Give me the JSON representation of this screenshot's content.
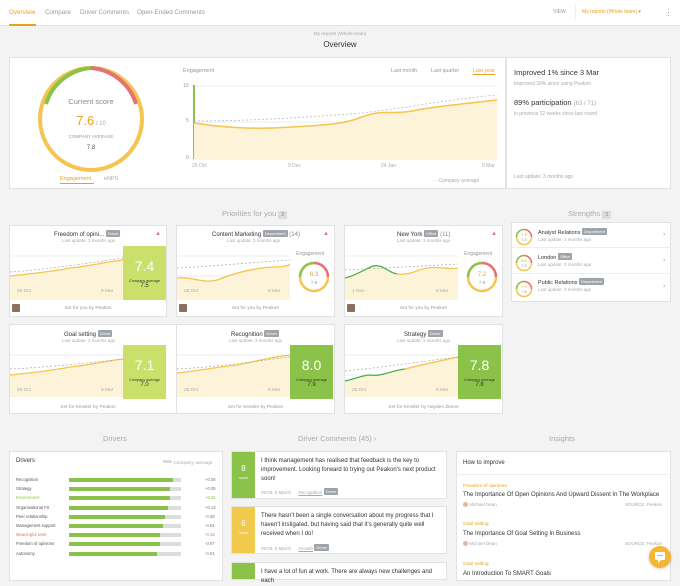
{
  "tabs": [
    "Overview",
    "Compare",
    "Driver Comments",
    "Open-Ended Comments"
  ],
  "view_label": "VIEW",
  "team_select": "My reports (Whole team)",
  "more_icon": "⋮",
  "subtitle": "My reports (Whole team)",
  "title": "Overview",
  "score": {
    "label": "Current score",
    "value": "7.6",
    "of": "/ 10",
    "avg_label": "COMPANY AVERAGE",
    "avg": "7.8",
    "tab_engagement": "Engagement",
    "tab_enps": "eNPS"
  },
  "engagement_chart": {
    "label": "Engagement",
    "ranges": [
      "Last month",
      "Last quarter",
      "Last year"
    ],
    "y_ticks": [
      "10",
      "5",
      "0"
    ],
    "x_ticks": [
      "25 Oct",
      "9 Dec",
      "24 Jan",
      "9 Mar"
    ],
    "legend": "Company average"
  },
  "summary": {
    "improved": "Improved 1% since 3 Mar",
    "improved_sub": "Improved 39% since using Peakon",
    "participation": "89% participation",
    "participation_count": "(63 / 71)",
    "participation_sub": "in previous 12 weeks since last round",
    "last_update": "Last update: 3 months ago"
  },
  "priorities": {
    "heading": "Priorities for you",
    "count": "3"
  },
  "strengths": {
    "heading": "Strengths",
    "count": "3",
    "items": [
      {
        "name": "Analyst Relations",
        "badge": "Department",
        "update": "Last update: 3 months ago",
        "score": "7.9",
        "avg": "7.8"
      },
      {
        "name": "London",
        "badge": "Office",
        "update": "Last update: 3 months ago",
        "score": "8.0",
        "avg": "7.8"
      },
      {
        "name": "Public Relations",
        "badge": "Department",
        "update": "Last update: 3 months ago",
        "score": "7.9",
        "avg": "7.8"
      }
    ]
  },
  "priority_cards": [
    {
      "title": "Freedom of opini...",
      "badge": "Driver",
      "update": "Last update: 3 months ago",
      "score": "7.4",
      "avg_label": "Company average",
      "avg": "7.5",
      "x1": "25 Oct",
      "x2": "9 Mar",
      "footer": "Set for you by Peakon",
      "warn": "▲"
    },
    {
      "title": "Content Marketing",
      "badge": "Department",
      "extra": "(14)",
      "update": "Last update: 3 months ago",
      "score": "6.3",
      "avg": "7.8",
      "ring_label": "Engagement",
      "x1": "25 Oct",
      "x2": "9 Mar",
      "footer": "Set for you by Peakon",
      "warn": "▲"
    },
    {
      "title": "New York",
      "badge": "Office",
      "extra": "(11)",
      "update": "Last update: 3 months ago",
      "score": "7.2",
      "avg": "7.8",
      "ring_label": "Engagement",
      "x1": "1 Nov",
      "x2": "9 Mar",
      "footer": "Set for you by Peakon",
      "warn": "▲"
    }
  ],
  "goal_cards": [
    {
      "title": "Goal setting",
      "badge": "Driver",
      "update": "Last update: 3 months ago",
      "score": "7.1",
      "avg_label": "Company average",
      "avg": "7.0",
      "x1": "25 Oct",
      "x2": "9 Mar",
      "footer": "Set for Kinstler by Peakon"
    },
    {
      "title": "Recognition",
      "badge": "Driver",
      "update": "Last update: 3 months ago",
      "score": "8.0",
      "avg_label": "Company average",
      "avg": "7.9",
      "x1": "25 Oct",
      "x2": "9 Mar",
      "footer": "Set for Kinstler by Peakon"
    },
    {
      "title": "Strategy",
      "badge": "Driver",
      "update": "Last update: 3 months ago",
      "score": "7.8",
      "avg_label": "Company average",
      "avg": "7.8",
      "x1": "25 Oct",
      "x2": "9 Mar",
      "footer": "Set for Kinstler by Hayden Zieme"
    }
  ],
  "drivers": {
    "heading": "Drivers",
    "card_title": "Drivers",
    "legend": "Company average",
    "rows": [
      {
        "name": "Recognition",
        "val": "+0.05",
        "pct": 0.8,
        "color": "#555"
      },
      {
        "name": "Strategy",
        "val": "+0.05",
        "pct": 0.78,
        "color": "#555"
      },
      {
        "name": "Environment",
        "val": "+0.01",
        "pct": 0.78,
        "color": "#8bc34a"
      },
      {
        "name": "Organisational Fit",
        "val": "+0.13",
        "pct": 0.76,
        "color": "#555"
      },
      {
        "name": "Peer relationship",
        "val": "-0.38",
        "pct": 0.74,
        "color": "#555"
      },
      {
        "name": "Management support",
        "val": "-0.04",
        "pct": 0.72,
        "color": "#555"
      },
      {
        "name": "Meaningful work",
        "val": "-0.15",
        "pct": 0.7,
        "color": "#e57373"
      },
      {
        "name": "Freedom of opinions",
        "val": "-0.07",
        "pct": 0.7,
        "color": "#555"
      },
      {
        "name": "Autonomy",
        "val": "-0.04",
        "pct": 0.68,
        "color": "#555"
      }
    ]
  },
  "comments": {
    "heading": "Driver Comments",
    "count": "(45)",
    "items": [
      {
        "score": "8",
        "label": "score",
        "color": "#8bc34a",
        "text": "I think management has realised that feedback is the key to improvement. Looking forward to trying out Peakon's next product soon!",
        "date": "08:59, 9 March",
        "tag": "Recognition",
        "badge": "Driver"
      },
      {
        "score": "6",
        "label": "score",
        "color": "#f0c94d",
        "text": "There hasn't been a single conversation about my progress that I haven't instigated, but having said that it's generally quite well received when I do!",
        "date": "08:59, 9 March",
        "tag": "Growth",
        "badge": "Driver"
      },
      {
        "score": "",
        "label": "",
        "color": "#8bc34a",
        "text": "I have a lot of fun at work. There are always new challenges and each",
        "date": "",
        "tag": "",
        "badge": ""
      }
    ]
  },
  "insights": {
    "heading": "Insights",
    "card_title": "How to improve",
    "items": [
      {
        "category": "Freedom of opinions",
        "title": "The Importance Of Open Opinions And Upward Dissent In The Workplace",
        "author": "Michael Dean",
        "source": "SOURCE: Peakon"
      },
      {
        "category": "Goal setting",
        "title": "The Importance Of Goal Setting In Business",
        "author": "Michael Dean",
        "source": "SOURCE: Peakon"
      },
      {
        "category": "Goal setting",
        "title": "An Introduction To SMART Goals",
        "author": "",
        "source": ""
      }
    ]
  },
  "chat_icon": "chat-bubble"
}
